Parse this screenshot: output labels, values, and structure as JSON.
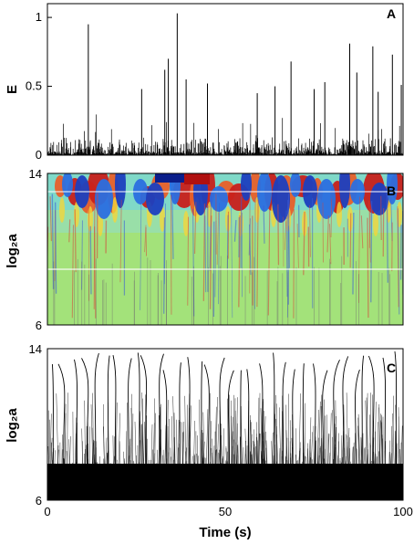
{
  "chart_data": [
    {
      "panel": "A",
      "type": "bar",
      "ylabel": "E",
      "xlim": [
        0,
        100
      ],
      "ylim": [
        0,
        1.1
      ],
      "yticks": [
        "0",
        "0.5",
        "1"
      ],
      "spikes": [
        {
          "x": 11.5,
          "y": 0.95
        },
        {
          "x": 36.5,
          "y": 1.03
        },
        {
          "x": 34.0,
          "y": 0.7
        },
        {
          "x": 68.5,
          "y": 0.68
        },
        {
          "x": 85.0,
          "y": 0.81
        },
        {
          "x": 91.5,
          "y": 0.79
        },
        {
          "x": 97.0,
          "y": 0.73
        },
        {
          "x": 26.5,
          "y": 0.48
        },
        {
          "x": 33.0,
          "y": 0.62
        },
        {
          "x": 39.0,
          "y": 0.55
        },
        {
          "x": 45.0,
          "y": 0.52
        },
        {
          "x": 59.0,
          "y": 0.45
        },
        {
          "x": 64.0,
          "y": 0.5
        },
        {
          "x": 75.0,
          "y": 0.48
        },
        {
          "x": 78.0,
          "y": 0.53
        },
        {
          "x": 87.0,
          "y": 0.6
        },
        {
          "x": 93.0,
          "y": 0.46
        },
        {
          "x": 99.5,
          "y": 0.51
        }
      ]
    },
    {
      "panel": "B",
      "type": "heatmap",
      "ylabel": "log₂a",
      "xlim": [
        0,
        100
      ],
      "ylim": [
        6,
        14
      ],
      "yticks": [
        "6",
        "14"
      ]
    },
    {
      "panel": "C",
      "type": "line",
      "ylabel": "log₂a",
      "xlabel": "Time (s)",
      "xlim": [
        0,
        100
      ],
      "ylim": [
        6,
        14
      ],
      "yticks": [
        "6",
        "14"
      ],
      "xticks": [
        "0",
        "50",
        "100"
      ]
    }
  ]
}
